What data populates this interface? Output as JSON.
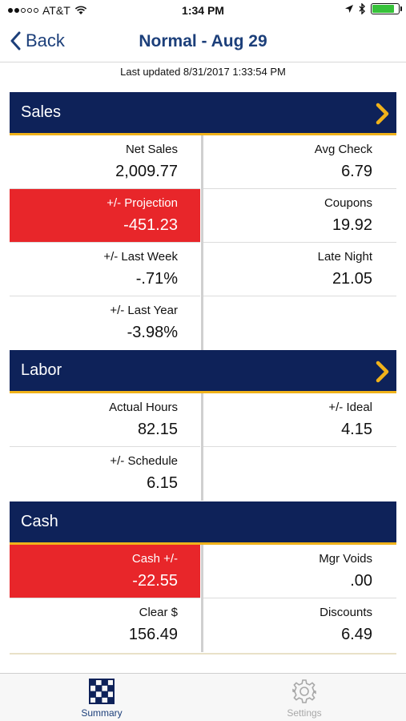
{
  "status": {
    "carrier": "AT&T",
    "time": "1:34 PM",
    "battery_level": 0.85,
    "battery_color": "#37c23a",
    "icons": [
      "wifi-icon",
      "location-arrow-icon",
      "bluetooth-icon",
      "battery-icon"
    ]
  },
  "nav": {
    "back_label": "Back",
    "title": "Normal - Aug 29"
  },
  "last_updated": "Last updated 8/31/2017 1:33:54 PM",
  "colors": {
    "header_bg": "#0e2259",
    "accent": "#f0b21a",
    "alert": "#e8262a",
    "nav_text": "#1c3f7a"
  },
  "sales": {
    "title": "Sales",
    "net_sales": {
      "label": "Net Sales",
      "value": "2,009.77"
    },
    "avg_check": {
      "label": "Avg Check",
      "value": "6.79"
    },
    "projection": {
      "label": "+/- Projection",
      "value": "-451.23"
    },
    "coupons": {
      "label": "Coupons",
      "value": "19.92"
    },
    "last_week": {
      "label": "+/- Last Week",
      "value": "-.71%"
    },
    "late_night": {
      "label": "Late Night",
      "value": "21.05"
    },
    "last_year": {
      "label": "+/- Last Year",
      "value": "-3.98%"
    }
  },
  "labor": {
    "title": "Labor",
    "actual_hours": {
      "label": "Actual Hours",
      "value": "82.15"
    },
    "ideal": {
      "label": "+/- Ideal",
      "value": "4.15"
    },
    "schedule": {
      "label": "+/- Schedule",
      "value": "6.15"
    }
  },
  "cash": {
    "title": "Cash",
    "cash_diff": {
      "label": "Cash +/-",
      "value": "-22.55"
    },
    "mgr_voids": {
      "label": "Mgr Voids",
      "value": ".00"
    },
    "clear": {
      "label": "Clear $",
      "value": "156.49"
    },
    "discounts": {
      "label": "Discounts",
      "value": "6.49"
    }
  },
  "tabs": {
    "summary": "Summary",
    "settings": "Settings"
  }
}
